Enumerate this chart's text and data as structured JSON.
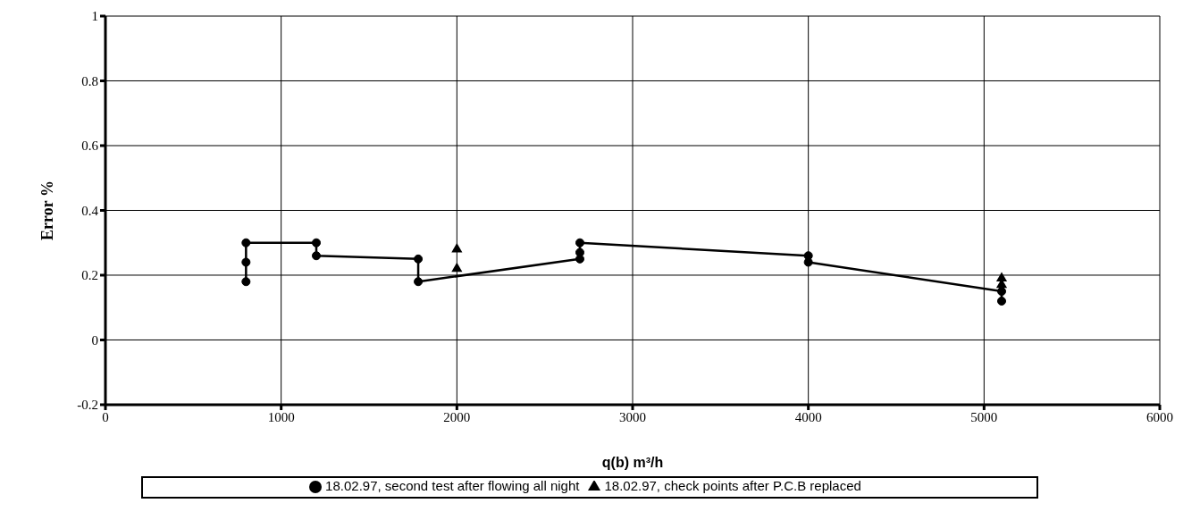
{
  "chart_data": {
    "type": "scatter",
    "xlabel": "q(b) m³/h",
    "ylabel": "Error  %",
    "xlim": [
      0,
      6000
    ],
    "xticks": [
      0,
      1000,
      2000,
      3000,
      4000,
      5000,
      6000
    ],
    "ylim": [
      -0.2,
      1
    ],
    "yticks": [
      -0.2,
      0,
      0.2,
      0.4,
      0.6,
      0.8,
      1
    ],
    "grid": true,
    "legend": "bottom",
    "series": [
      {
        "name": "18.02.97, second test after flowing all night",
        "type": "line",
        "marker": "circle",
        "color": "#000000",
        "x": [
          800,
          800,
          800,
          1200,
          1200,
          1780,
          1780,
          2700,
          2700,
          2700,
          4000,
          4000,
          5100,
          5100
        ],
        "values": [
          0.18,
          0.24,
          0.3,
          0.3,
          0.26,
          0.25,
          0.18,
          0.25,
          0.27,
          0.3,
          0.26,
          0.24,
          0.15,
          0.12
        ]
      },
      {
        "name": "18.02.97, check points after P.C.B replaced",
        "marker": "triangle",
        "color": "#000000",
        "x": [
          2000,
          2000,
          5100,
          5100
        ],
        "values": [
          0.28,
          0.22,
          0.19,
          0.17
        ]
      }
    ]
  }
}
